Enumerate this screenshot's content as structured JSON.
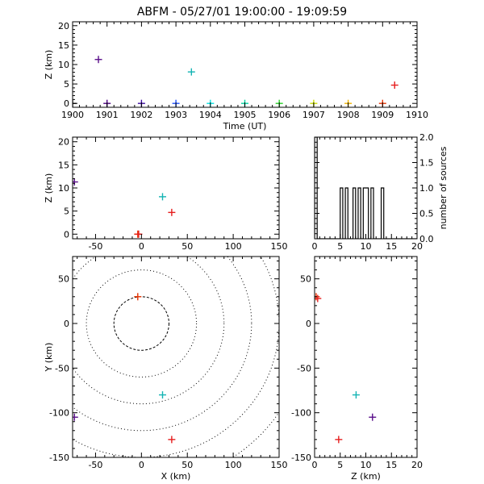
{
  "title": "ABFM - 05/27/01 19:00:00 - 19:09:59",
  "chart_data": [
    {
      "panel": "time-vs-z",
      "type": "scatter",
      "xlabel": "Time (UT)",
      "ylabel": "Z (km)",
      "xlim": [
        1900,
        1910
      ],
      "ylim": [
        -1,
        21
      ],
      "xticks": [
        1900,
        1901,
        1902,
        1903,
        1904,
        1905,
        1906,
        1907,
        1908,
        1909,
        1910
      ],
      "yticks": [
        0,
        5,
        10,
        15,
        20
      ],
      "points": [
        {
          "x": 1900.0,
          "y": 0.0,
          "color": "#000000"
        },
        {
          "x": 1900.75,
          "y": 11.3,
          "color": "#5a0f8a"
        },
        {
          "x": 1901.0,
          "y": 0.0,
          "color": "#4b0082"
        },
        {
          "x": 1902.0,
          "y": 0.0,
          "color": "#3b0aa0"
        },
        {
          "x": 1903.0,
          "y": 0.0,
          "color": "#1e50ff"
        },
        {
          "x": 1903.45,
          "y": 8.1,
          "color": "#14b4b4"
        },
        {
          "x": 1904.0,
          "y": 0.0,
          "color": "#00e0e0"
        },
        {
          "x": 1905.0,
          "y": 0.0,
          "color": "#00d2a0"
        },
        {
          "x": 1906.0,
          "y": 0.0,
          "color": "#28d228"
        },
        {
          "x": 1907.0,
          "y": 0.0,
          "color": "#c8dc00"
        },
        {
          "x": 1908.0,
          "y": 0.0,
          "color": "#f0b400"
        },
        {
          "x": 1909.0,
          "y": 0.0,
          "color": "#e63200"
        },
        {
          "x": 1909.35,
          "y": 4.7,
          "color": "#e61e1e"
        }
      ]
    },
    {
      "panel": "x-vs-z",
      "type": "scatter",
      "xlabel": "",
      "ylabel": "Z (km)",
      "xlim": [
        -75,
        150
      ],
      "ylim": [
        -1,
        21
      ],
      "xticks": [
        -50,
        0,
        50,
        100,
        150
      ],
      "yticks": [
        0,
        5,
        10,
        15,
        20
      ],
      "points": [
        {
          "x": -73,
          "y": 11.3,
          "color": "#5a0f8a"
        },
        {
          "x": -4,
          "y": 0.0,
          "color": "#e63200"
        },
        {
          "x": -3,
          "y": 0.0,
          "color": "#e61e1e"
        },
        {
          "x": 23,
          "y": 8.1,
          "color": "#14b4b4"
        },
        {
          "x": 33,
          "y": 4.7,
          "color": "#e61e1e"
        }
      ]
    },
    {
      "panel": "histogram",
      "type": "bar",
      "xlabel": "",
      "ylabel": "number of sources",
      "xlim": [
        0,
        20
      ],
      "ylim": [
        0,
        2
      ],
      "xticks": [
        0,
        5,
        10,
        15,
        20
      ],
      "yticks": [
        0.0,
        0.5,
        1.0,
        1.5,
        2.0
      ],
      "bins": [
        0,
        0.5,
        1,
        1.5,
        2,
        2.5,
        3,
        3.5,
        4,
        4.5,
        5,
        5.5,
        6,
        6.5,
        7,
        7.5,
        8,
        8.5,
        9,
        9.5,
        10,
        10.5,
        11,
        11.5,
        12,
        12.5,
        13,
        13.5,
        14,
        14.5,
        15,
        15.5,
        16,
        16.5,
        17,
        17.5,
        18,
        18.5,
        19,
        19.5
      ],
      "values": [
        2,
        0,
        0,
        0,
        0,
        0,
        0,
        0,
        0,
        0,
        1,
        0,
        1,
        0,
        0,
        1,
        0,
        1,
        0,
        1,
        1,
        0,
        1,
        0,
        0,
        0,
        1,
        0,
        0,
        0,
        0,
        0,
        0,
        0,
        0,
        0,
        0,
        0,
        0,
        0
      ]
    },
    {
      "panel": "x-vs-y",
      "type": "scatter",
      "xlabel": "X (km)",
      "ylabel": "Y (km)",
      "xlim": [
        -75,
        150
      ],
      "ylim": [
        -150,
        75
      ],
      "xticks": [
        -50,
        0,
        50,
        100,
        150
      ],
      "yticks": [
        -150,
        -100,
        -50,
        0,
        50
      ],
      "range_rings_km": [
        30,
        60,
        90,
        120,
        150,
        180
      ],
      "points": [
        {
          "x": -4,
          "y": 30,
          "color": "#e63200"
        },
        {
          "x": -73,
          "y": -105,
          "color": "#5a0f8a"
        },
        {
          "x": 23,
          "y": -80,
          "color": "#14b4b4"
        },
        {
          "x": 33,
          "y": -130,
          "color": "#e61e1e"
        }
      ]
    },
    {
      "panel": "z-vs-y",
      "type": "scatter",
      "xlabel": "Z (km)",
      "ylabel": "",
      "xlim": [
        0,
        20
      ],
      "ylim": [
        -150,
        75
      ],
      "xticks": [
        0,
        5,
        10,
        15,
        20
      ],
      "yticks": [
        -150,
        -100,
        -50,
        0,
        50
      ],
      "points": [
        {
          "x": 0.3,
          "y": 30,
          "color": "#e63200"
        },
        {
          "x": 0.6,
          "y": 28,
          "color": "#e61e1e"
        },
        {
          "x": 11.3,
          "y": -105,
          "color": "#5a0f8a"
        },
        {
          "x": 8.1,
          "y": -80,
          "color": "#14b4b4"
        },
        {
          "x": 4.7,
          "y": -130,
          "color": "#e61e1e"
        }
      ]
    }
  ]
}
